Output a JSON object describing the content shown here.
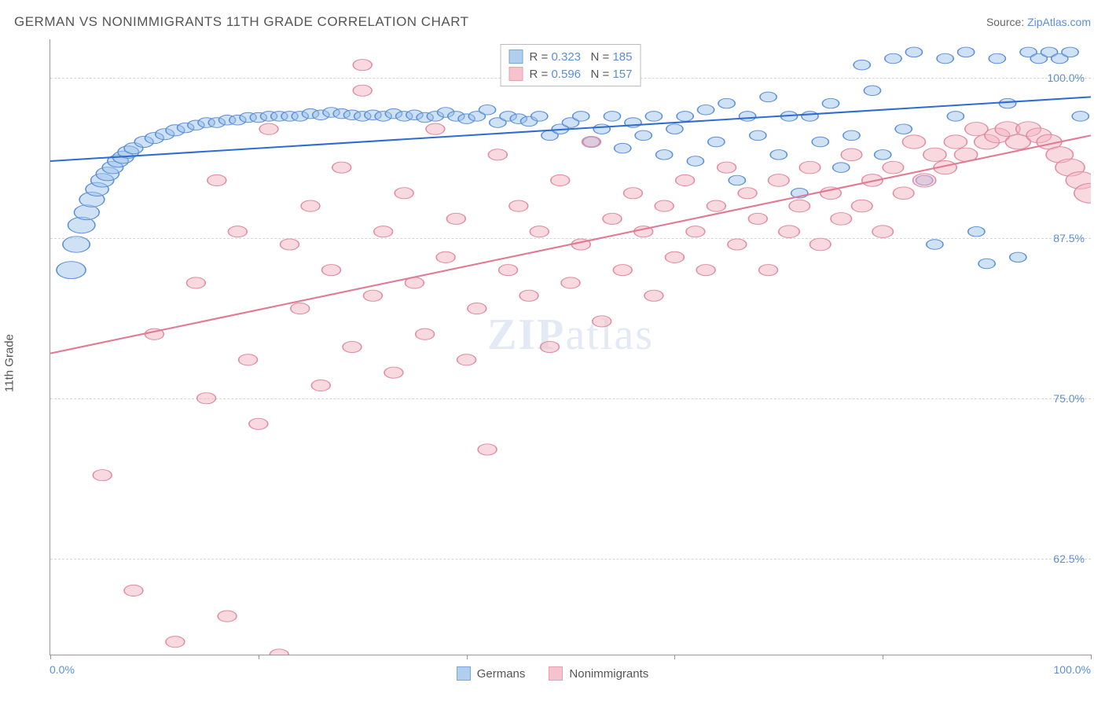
{
  "title": "GERMAN VS NONIMMIGRANTS 11TH GRADE CORRELATION CHART",
  "source_label": "Source: ",
  "source_name": "ZipAtlas.com",
  "ylabel": "11th Grade",
  "watermark": "ZIPatlas",
  "chart": {
    "type": "scatter",
    "background_color": "#ffffff",
    "grid_color": "#d5d5d5",
    "axis_color": "#999999",
    "xlim": [
      0,
      100
    ],
    "ylim": [
      55,
      103
    ],
    "xticklabels": [
      "0.0%",
      "100.0%"
    ],
    "xtick_positions_pct": [
      0,
      20,
      40,
      60,
      80,
      100
    ],
    "yticks": [
      {
        "v": 62.5,
        "label": "62.5%"
      },
      {
        "v": 75.0,
        "label": "75.0%"
      },
      {
        "v": 87.5,
        "label": "87.5%"
      },
      {
        "v": 100.0,
        "label": "100.0%"
      }
    ],
    "label_color": "#5b8fd6",
    "label_fontsize": 14,
    "series": [
      {
        "name": "Germans",
        "fill": "#9dc3eb",
        "stroke": "#5b8fd6",
        "fill_opacity": 0.5,
        "line_color": "#2f6bd0",
        "line_width": 2,
        "r_value": "0.323",
        "n_value": "185",
        "trend": {
          "x1": 0,
          "y1": 93.5,
          "x2": 100,
          "y2": 98.5
        },
        "points": [
          {
            "x": 2,
            "y": 85,
            "r": 14
          },
          {
            "x": 2.5,
            "y": 87,
            "r": 13
          },
          {
            "x": 3,
            "y": 88.5,
            "r": 13
          },
          {
            "x": 3.5,
            "y": 89.5,
            "r": 12
          },
          {
            "x": 4,
            "y": 90.5,
            "r": 12
          },
          {
            "x": 4.5,
            "y": 91.3,
            "r": 11
          },
          {
            "x": 5,
            "y": 92,
            "r": 11
          },
          {
            "x": 5.5,
            "y": 92.5,
            "r": 11
          },
          {
            "x": 6,
            "y": 93,
            "r": 10
          },
          {
            "x": 6.5,
            "y": 93.5,
            "r": 10
          },
          {
            "x": 7,
            "y": 93.8,
            "r": 10
          },
          {
            "x": 7.5,
            "y": 94.2,
            "r": 10
          },
          {
            "x": 8,
            "y": 94.5,
            "r": 9
          },
          {
            "x": 9,
            "y": 95,
            "r": 9
          },
          {
            "x": 10,
            "y": 95.3,
            "r": 9
          },
          {
            "x": 11,
            "y": 95.6,
            "r": 9
          },
          {
            "x": 12,
            "y": 95.9,
            "r": 9
          },
          {
            "x": 13,
            "y": 96.1,
            "r": 8
          },
          {
            "x": 14,
            "y": 96.3,
            "r": 8
          },
          {
            "x": 15,
            "y": 96.5,
            "r": 8
          },
          {
            "x": 16,
            "y": 96.5,
            "r": 8
          },
          {
            "x": 17,
            "y": 96.7,
            "r": 8
          },
          {
            "x": 18,
            "y": 96.7,
            "r": 8
          },
          {
            "x": 19,
            "y": 96.9,
            "r": 8
          },
          {
            "x": 20,
            "y": 96.9,
            "r": 8
          },
          {
            "x": 21,
            "y": 97,
            "r": 8
          },
          {
            "x": 22,
            "y": 97,
            "r": 8
          },
          {
            "x": 23,
            "y": 97,
            "r": 8
          },
          {
            "x": 24,
            "y": 97,
            "r": 8
          },
          {
            "x": 25,
            "y": 97.2,
            "r": 8
          },
          {
            "x": 26,
            "y": 97.1,
            "r": 8
          },
          {
            "x": 27,
            "y": 97.3,
            "r": 8
          },
          {
            "x": 28,
            "y": 97.2,
            "r": 8
          },
          {
            "x": 29,
            "y": 97.1,
            "r": 8
          },
          {
            "x": 30,
            "y": 97,
            "r": 8
          },
          {
            "x": 31,
            "y": 97.1,
            "r": 8
          },
          {
            "x": 32,
            "y": 97,
            "r": 8
          },
          {
            "x": 33,
            "y": 97.2,
            "r": 8
          },
          {
            "x": 34,
            "y": 97,
            "r": 8
          },
          {
            "x": 35,
            "y": 97.1,
            "r": 8
          },
          {
            "x": 36,
            "y": 96.9,
            "r": 8
          },
          {
            "x": 37,
            "y": 97,
            "r": 8
          },
          {
            "x": 38,
            "y": 97.3,
            "r": 8
          },
          {
            "x": 39,
            "y": 97,
            "r": 8
          },
          {
            "x": 40,
            "y": 96.8,
            "r": 8
          },
          {
            "x": 41,
            "y": 97,
            "r": 8
          },
          {
            "x": 42,
            "y": 97.5,
            "r": 8
          },
          {
            "x": 43,
            "y": 96.5,
            "r": 8
          },
          {
            "x": 44,
            "y": 97,
            "r": 8
          },
          {
            "x": 45,
            "y": 96.8,
            "r": 8
          },
          {
            "x": 46,
            "y": 96.6,
            "r": 8
          },
          {
            "x": 47,
            "y": 97,
            "r": 8
          },
          {
            "x": 48,
            "y": 95.5,
            "r": 8
          },
          {
            "x": 49,
            "y": 96,
            "r": 8
          },
          {
            "x": 50,
            "y": 96.5,
            "r": 8
          },
          {
            "x": 51,
            "y": 97,
            "r": 8
          },
          {
            "x": 52,
            "y": 95,
            "r": 8
          },
          {
            "x": 53,
            "y": 96,
            "r": 8
          },
          {
            "x": 54,
            "y": 97,
            "r": 8
          },
          {
            "x": 55,
            "y": 94.5,
            "r": 8
          },
          {
            "x": 56,
            "y": 96.5,
            "r": 8
          },
          {
            "x": 57,
            "y": 95.5,
            "r": 8
          },
          {
            "x": 58,
            "y": 97,
            "r": 8
          },
          {
            "x": 59,
            "y": 94,
            "r": 8
          },
          {
            "x": 60,
            "y": 96,
            "r": 8
          },
          {
            "x": 61,
            "y": 97,
            "r": 8
          },
          {
            "x": 62,
            "y": 93.5,
            "r": 8
          },
          {
            "x": 63,
            "y": 97.5,
            "r": 8
          },
          {
            "x": 64,
            "y": 95,
            "r": 8
          },
          {
            "x": 65,
            "y": 98,
            "r": 8
          },
          {
            "x": 66,
            "y": 92,
            "r": 8
          },
          {
            "x": 67,
            "y": 97,
            "r": 8
          },
          {
            "x": 68,
            "y": 95.5,
            "r": 8
          },
          {
            "x": 69,
            "y": 98.5,
            "r": 8
          },
          {
            "x": 70,
            "y": 94,
            "r": 8
          },
          {
            "x": 71,
            "y": 97,
            "r": 8
          },
          {
            "x": 72,
            "y": 91,
            "r": 8
          },
          {
            "x": 73,
            "y": 97,
            "r": 8
          },
          {
            "x": 74,
            "y": 95,
            "r": 8
          },
          {
            "x": 75,
            "y": 98,
            "r": 8
          },
          {
            "x": 76,
            "y": 93,
            "r": 8
          },
          {
            "x": 77,
            "y": 95.5,
            "r": 8
          },
          {
            "x": 78,
            "y": 101,
            "r": 8
          },
          {
            "x": 79,
            "y": 99,
            "r": 8
          },
          {
            "x": 80,
            "y": 94,
            "r": 8
          },
          {
            "x": 81,
            "y": 101.5,
            "r": 8
          },
          {
            "x": 82,
            "y": 96,
            "r": 8
          },
          {
            "x": 83,
            "y": 102,
            "r": 8
          },
          {
            "x": 84,
            "y": 92,
            "r": 8
          },
          {
            "x": 85,
            "y": 87,
            "r": 8
          },
          {
            "x": 86,
            "y": 101.5,
            "r": 8
          },
          {
            "x": 87,
            "y": 97,
            "r": 8
          },
          {
            "x": 88,
            "y": 102,
            "r": 8
          },
          {
            "x": 89,
            "y": 88,
            "r": 8
          },
          {
            "x": 90,
            "y": 85.5,
            "r": 8
          },
          {
            "x": 91,
            "y": 101.5,
            "r": 8
          },
          {
            "x": 92,
            "y": 98,
            "r": 8
          },
          {
            "x": 93,
            "y": 86,
            "r": 8
          },
          {
            "x": 94,
            "y": 102,
            "r": 8
          },
          {
            "x": 95,
            "y": 101.5,
            "r": 8
          },
          {
            "x": 96,
            "y": 102,
            "r": 8
          },
          {
            "x": 97,
            "y": 101.5,
            "r": 8
          },
          {
            "x": 98,
            "y": 102,
            "r": 8
          },
          {
            "x": 99,
            "y": 97,
            "r": 8
          }
        ]
      },
      {
        "name": "Nonimmigrants",
        "fill": "#f4b4c2",
        "stroke": "#e08ba0",
        "fill_opacity": 0.5,
        "line_color": "#e27a94",
        "line_width": 2,
        "r_value": "0.596",
        "n_value": "157",
        "trend": {
          "x1": 0,
          "y1": 78.5,
          "x2": 100,
          "y2": 95.5
        },
        "points": [
          {
            "x": 5,
            "y": 69,
            "r": 9
          },
          {
            "x": 8,
            "y": 60,
            "r": 9
          },
          {
            "x": 10,
            "y": 80,
            "r": 9
          },
          {
            "x": 12,
            "y": 56,
            "r": 9
          },
          {
            "x": 14,
            "y": 84,
            "r": 9
          },
          {
            "x": 15,
            "y": 75,
            "r": 9
          },
          {
            "x": 16,
            "y": 92,
            "r": 9
          },
          {
            "x": 17,
            "y": 58,
            "r": 9
          },
          {
            "x": 18,
            "y": 88,
            "r": 9
          },
          {
            "x": 19,
            "y": 78,
            "r": 9
          },
          {
            "x": 20,
            "y": 73,
            "r": 9
          },
          {
            "x": 21,
            "y": 96,
            "r": 9
          },
          {
            "x": 22,
            "y": 55,
            "r": 9
          },
          {
            "x": 23,
            "y": 87,
            "r": 9
          },
          {
            "x": 24,
            "y": 82,
            "r": 9
          },
          {
            "x": 25,
            "y": 90,
            "r": 9
          },
          {
            "x": 26,
            "y": 76,
            "r": 9
          },
          {
            "x": 27,
            "y": 85,
            "r": 9
          },
          {
            "x": 28,
            "y": 93,
            "r": 9
          },
          {
            "x": 29,
            "y": 79,
            "r": 9
          },
          {
            "x": 30,
            "y": 99,
            "r": 9
          },
          {
            "x": 30,
            "y": 101,
            "r": 9
          },
          {
            "x": 31,
            "y": 83,
            "r": 9
          },
          {
            "x": 32,
            "y": 88,
            "r": 9
          },
          {
            "x": 33,
            "y": 77,
            "r": 9
          },
          {
            "x": 34,
            "y": 91,
            "r": 9
          },
          {
            "x": 35,
            "y": 84,
            "r": 9
          },
          {
            "x": 36,
            "y": 80,
            "r": 9
          },
          {
            "x": 37,
            "y": 96,
            "r": 9
          },
          {
            "x": 38,
            "y": 86,
            "r": 9
          },
          {
            "x": 39,
            "y": 89,
            "r": 9
          },
          {
            "x": 40,
            "y": 78,
            "r": 9
          },
          {
            "x": 41,
            "y": 82,
            "r": 9
          },
          {
            "x": 42,
            "y": 71,
            "r": 9
          },
          {
            "x": 43,
            "y": 94,
            "r": 9
          },
          {
            "x": 44,
            "y": 85,
            "r": 9
          },
          {
            "x": 45,
            "y": 90,
            "r": 9
          },
          {
            "x": 46,
            "y": 83,
            "r": 9
          },
          {
            "x": 47,
            "y": 88,
            "r": 9
          },
          {
            "x": 48,
            "y": 79,
            "r": 9
          },
          {
            "x": 49,
            "y": 92,
            "r": 9
          },
          {
            "x": 50,
            "y": 84,
            "r": 9
          },
          {
            "x": 51,
            "y": 87,
            "r": 9
          },
          {
            "x": 52,
            "y": 95,
            "r": 9
          },
          {
            "x": 53,
            "y": 81,
            "r": 9
          },
          {
            "x": 54,
            "y": 89,
            "r": 9
          },
          {
            "x": 55,
            "y": 85,
            "r": 9
          },
          {
            "x": 56,
            "y": 91,
            "r": 9
          },
          {
            "x": 57,
            "y": 88,
            "r": 9
          },
          {
            "x": 58,
            "y": 83,
            "r": 9
          },
          {
            "x": 59,
            "y": 90,
            "r": 9
          },
          {
            "x": 60,
            "y": 86,
            "r": 9
          },
          {
            "x": 61,
            "y": 92,
            "r": 9
          },
          {
            "x": 62,
            "y": 88,
            "r": 9
          },
          {
            "x": 63,
            "y": 85,
            "r": 9
          },
          {
            "x": 64,
            "y": 90,
            "r": 9
          },
          {
            "x": 65,
            "y": 93,
            "r": 9
          },
          {
            "x": 66,
            "y": 87,
            "r": 9
          },
          {
            "x": 67,
            "y": 91,
            "r": 9
          },
          {
            "x": 68,
            "y": 89,
            "r": 9
          },
          {
            "x": 69,
            "y": 85,
            "r": 9
          },
          {
            "x": 70,
            "y": 92,
            "r": 10
          },
          {
            "x": 71,
            "y": 88,
            "r": 10
          },
          {
            "x": 72,
            "y": 90,
            "r": 10
          },
          {
            "x": 73,
            "y": 93,
            "r": 10
          },
          {
            "x": 74,
            "y": 87,
            "r": 10
          },
          {
            "x": 75,
            "y": 91,
            "r": 10
          },
          {
            "x": 76,
            "y": 89,
            "r": 10
          },
          {
            "x": 77,
            "y": 94,
            "r": 10
          },
          {
            "x": 78,
            "y": 90,
            "r": 10
          },
          {
            "x": 79,
            "y": 92,
            "r": 10
          },
          {
            "x": 80,
            "y": 88,
            "r": 10
          },
          {
            "x": 81,
            "y": 93,
            "r": 10
          },
          {
            "x": 82,
            "y": 91,
            "r": 10
          },
          {
            "x": 83,
            "y": 95,
            "r": 11
          },
          {
            "x": 84,
            "y": 92,
            "r": 11
          },
          {
            "x": 85,
            "y": 94,
            "r": 11
          },
          {
            "x": 86,
            "y": 93,
            "r": 11
          },
          {
            "x": 87,
            "y": 95,
            "r": 11
          },
          {
            "x": 88,
            "y": 94,
            "r": 11
          },
          {
            "x": 89,
            "y": 96,
            "r": 11
          },
          {
            "x": 90,
            "y": 95,
            "r": 12
          },
          {
            "x": 91,
            "y": 95.5,
            "r": 12
          },
          {
            "x": 92,
            "y": 96,
            "r": 12
          },
          {
            "x": 93,
            "y": 95,
            "r": 12
          },
          {
            "x": 94,
            "y": 96,
            "r": 12
          },
          {
            "x": 95,
            "y": 95.5,
            "r": 12
          },
          {
            "x": 96,
            "y": 95,
            "r": 12
          },
          {
            "x": 97,
            "y": 94,
            "r": 13
          },
          {
            "x": 98,
            "y": 93,
            "r": 14
          },
          {
            "x": 99,
            "y": 92,
            "r": 14
          },
          {
            "x": 100,
            "y": 91,
            "r": 16
          }
        ]
      }
    ],
    "legend_bottom": [
      {
        "name": "Germans"
      },
      {
        "name": "Nonimmigrants"
      }
    ]
  }
}
